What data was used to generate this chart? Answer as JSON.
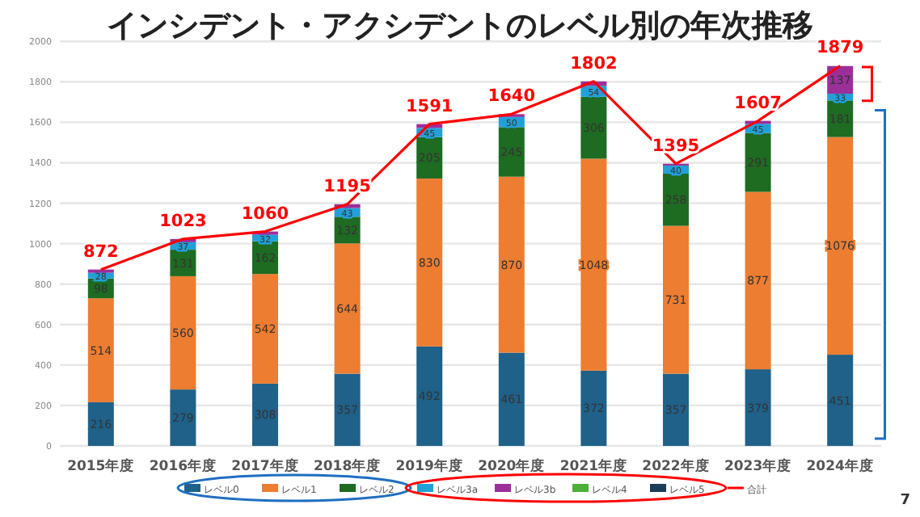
{
  "chart_data": {
    "type": "bar",
    "stacked": true,
    "title": "インシデント・アクシデントのレベル別の年次推移",
    "categories": [
      "2015年度",
      "2016年度",
      "2017年度",
      "2018年度",
      "2019年度",
      "2020年度",
      "2021年度",
      "2022年度",
      "2023年度",
      "2024年度"
    ],
    "ylim": [
      0,
      2000
    ],
    "yticks": [
      0,
      200,
      400,
      600,
      800,
      1000,
      1200,
      1400,
      1600,
      1800,
      2000
    ],
    "grid": "y",
    "legend": "bottom",
    "series": [
      {
        "name": "レベル0",
        "color": "#1f6189",
        "values": [
          216,
          279,
          308,
          357,
          492,
          461,
          372,
          357,
          379,
          451
        ],
        "value_labels": [
          "216",
          "279",
          "308",
          "357",
          "492",
          "461",
          "372",
          "357",
          "379",
          "451"
        ]
      },
      {
        "name": "レベル1",
        "color": "#ed7d31",
        "values": [
          514,
          560,
          542,
          644,
          830,
          870,
          1048,
          731,
          877,
          1076
        ],
        "value_labels": [
          "514",
          "560",
          "542",
          "644",
          "830",
          "870",
          "1048",
          "731",
          "877",
          "1076"
        ]
      },
      {
        "name": "レベル2",
        "color": "#1e6b22",
        "values": [
          98,
          131,
          162,
          132,
          205,
          245,
          306,
          258,
          291,
          181
        ],
        "value_labels": [
          "98",
          "131",
          "162",
          "132",
          "205",
          "245",
          "306",
          "258",
          "291",
          "181"
        ]
      },
      {
        "name": "レベル3a",
        "color": "#22a0d8",
        "values": [
          28,
          37,
          32,
          43,
          45,
          50,
          54,
          40,
          45,
          33
        ],
        "value_labels": [
          "28",
          "37",
          "32",
          "43",
          "45",
          "50",
          "54",
          "40",
          "45",
          "33"
        ]
      },
      {
        "name": "レベル3b",
        "color": "#9b2f9a",
        "values": [
          16,
          16,
          16,
          19,
          19,
          14,
          22,
          9,
          15,
          137
        ],
        "value_labels": [
          null,
          null,
          null,
          null,
          null,
          null,
          null,
          null,
          null,
          "137"
        ]
      },
      {
        "name": "レベル4",
        "color": "#4caf3a",
        "values": [
          0,
          0,
          0,
          0,
          0,
          0,
          0,
          0,
          0,
          0
        ],
        "value_labels": [
          null,
          null,
          null,
          null,
          null,
          null,
          null,
          null,
          null,
          null
        ]
      },
      {
        "name": "レベル5",
        "color": "#1b3c5a",
        "values": [
          0,
          0,
          0,
          0,
          0,
          0,
          0,
          0,
          0,
          0
        ],
        "value_labels": [
          null,
          null,
          null,
          null,
          null,
          null,
          null,
          null,
          null,
          null
        ]
      },
      {
        "name": "合計",
        "type": "line",
        "color": "#ff0000",
        "values": [
          872,
          1023,
          1060,
          1195,
          1591,
          1640,
          1802,
          1395,
          1607,
          1879
        ],
        "value_labels": [
          "872",
          "1023",
          "1060",
          "1195",
          "1591",
          "1640",
          "1802",
          "1395",
          "1607",
          "1879"
        ]
      }
    ],
    "annotations": [
      "7"
    ]
  }
}
